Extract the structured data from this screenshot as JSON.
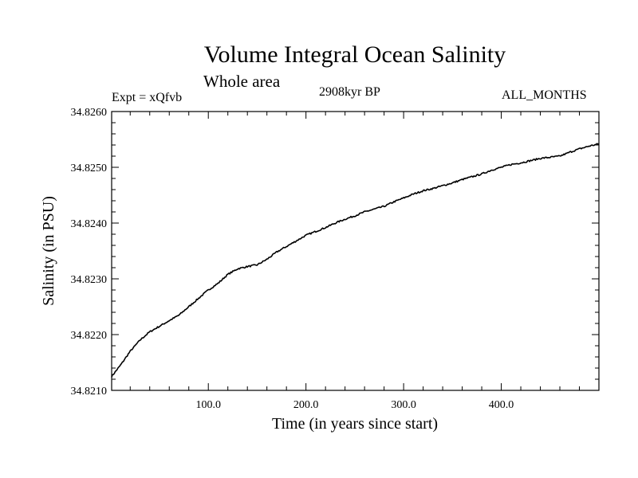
{
  "chart_data": {
    "type": "line",
    "title": "Volume Integral Ocean Salinity",
    "subtitle": "Whole area",
    "header_left": "Expt = xQfvb",
    "header_center": "2908kyr BP",
    "header_right": "ALL_MONTHS",
    "xlabel": "Time (in years since start)",
    "ylabel": "Salinity (in PSU)",
    "xlim": [
      1,
      500
    ],
    "ylim": [
      34.821,
      34.826
    ],
    "x_ticks": [
      {
        "value": 100,
        "label": "100.0"
      },
      {
        "value": 200,
        "label": "200.0"
      },
      {
        "value": 300,
        "label": "300.0"
      },
      {
        "value": 400,
        "label": "400.0"
      }
    ],
    "y_ticks": [
      {
        "value": 34.821,
        "label": "34.8210"
      },
      {
        "value": 34.822,
        "label": "34.8220"
      },
      {
        "value": 34.823,
        "label": "34.8230"
      },
      {
        "value": 34.824,
        "label": "34.8240"
      },
      {
        "value": 34.825,
        "label": "34.8250"
      },
      {
        "value": 34.826,
        "label": "34.8260"
      }
    ],
    "grid": false,
    "series": [
      {
        "name": "salinity",
        "x": [
          1,
          10,
          20,
          30,
          40,
          50,
          60,
          70,
          80,
          90,
          100,
          110,
          120,
          130,
          140,
          150,
          160,
          170,
          180,
          190,
          200,
          210,
          220,
          230,
          240,
          250,
          260,
          270,
          280,
          290,
          300,
          310,
          320,
          330,
          340,
          350,
          360,
          370,
          380,
          390,
          400,
          410,
          420,
          430,
          440,
          450,
          460,
          470,
          480,
          490,
          500
        ],
        "values": [
          34.82125,
          34.82145,
          34.8217,
          34.8219,
          34.82205,
          34.82215,
          34.82225,
          34.82235,
          34.8225,
          34.82265,
          34.8228,
          34.82292,
          34.82308,
          34.82318,
          34.82322,
          34.82325,
          34.82335,
          34.82348,
          34.82358,
          34.82368,
          34.82378,
          34.82385,
          34.82392,
          34.824,
          34.82407,
          34.82413,
          34.8242,
          34.82425,
          34.8243,
          34.82438,
          34.82445,
          34.82452,
          34.82458,
          34.82462,
          34.82467,
          34.82472,
          34.82478,
          34.82483,
          34.82488,
          34.82495,
          34.825,
          34.82505,
          34.82508,
          34.82512,
          34.82516,
          34.82518,
          34.8252,
          34.82527,
          34.82533,
          34.82538,
          34.82542
        ]
      }
    ]
  }
}
